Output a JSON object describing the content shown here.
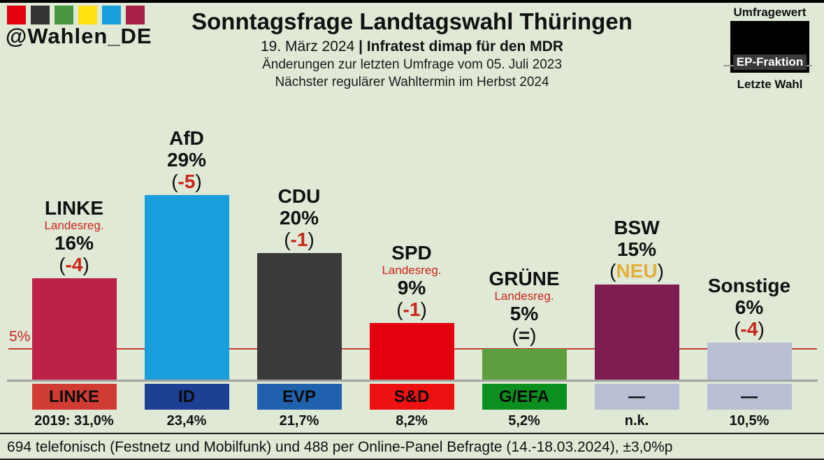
{
  "header": {
    "account": "@Wahlen_DE",
    "logo_colors": [
      "#e3000f",
      "#333333",
      "#4a9641",
      "#ffe10e",
      "#1a9fdd",
      "#a72046"
    ],
    "title": "Sonntagsfrage Landtagswahl Thüringen",
    "date_label": "19. März 2024 ",
    "source_label": "| Infratest dimap für den MDR",
    "subtitle2": "Änderungen zur letzten Umfrage vom 05. Juli 2023",
    "subtitle3": "Nächster regulärer Wahltermin im Herbst 2024"
  },
  "legend": {
    "top_label": "Umfragewert",
    "middle_label": "EP-Fraktion",
    "bottom_label": "Letzte Wahl"
  },
  "colors": {
    "background": "#dfe9d6",
    "accent_red": "#c9251c",
    "threshold_red": "#c93c32",
    "neutral_black": "#1a1a1a",
    "new_gold": "#e2ae3c",
    "baseline_gray": "#a3a3a3"
  },
  "chart_data": {
    "type": "bar",
    "title": "Sonntagsfrage Landtagswahl Thüringen",
    "unit": "%",
    "ylim": [
      0,
      31
    ],
    "grid": false,
    "threshold": {
      "value": 5,
      "label": "5%"
    },
    "categories": [
      "LINKE",
      "AfD",
      "CDU",
      "SPD",
      "GRÜNE",
      "BSW",
      "Sonstige"
    ],
    "values": [
      16,
      29,
      20,
      9,
      5,
      15,
      6
    ],
    "parties": [
      {
        "name": "LINKE",
        "note": "Landesreg.",
        "value": 16,
        "value_label": "16%",
        "change": "-4",
        "change_type": "loss",
        "ep_group": "LINKE",
        "last_election": "2019: 31,0%",
        "bar_color": "#bd2148",
        "ep_color": "#d03c33"
      },
      {
        "name": "AfD",
        "note": "",
        "value": 29,
        "value_label": "29%",
        "change": "-5",
        "change_type": "loss",
        "ep_group": "ID",
        "last_election": "23,4%",
        "bar_color": "#189edb",
        "ep_color": "#1d3f94"
      },
      {
        "name": "CDU",
        "note": "",
        "value": 20,
        "value_label": "20%",
        "change": "-1",
        "change_type": "loss",
        "ep_group": "EVP",
        "last_election": "21,7%",
        "bar_color": "#3a3a3a",
        "ep_color": "#2061ae"
      },
      {
        "name": "SPD",
        "note": "Landesreg.",
        "value": 9,
        "value_label": "9%",
        "change": "-1",
        "change_type": "loss",
        "ep_group": "S&D",
        "last_election": "8,2%",
        "bar_color": "#e3000f",
        "ep_color": "#ee1111"
      },
      {
        "name": "GRÜNE",
        "note": "Landesreg.",
        "value": 5,
        "value_label": "5%",
        "change": "=",
        "change_type": "equal",
        "ep_group": "G/EFA",
        "last_election": "5,2%",
        "bar_color": "#5f9e3e",
        "ep_color": "#0b9020"
      },
      {
        "name": "BSW",
        "note": "",
        "value": 15,
        "value_label": "15%",
        "change": "NEU",
        "change_type": "new",
        "ep_group": "—",
        "last_election": "n.k.",
        "bar_color": "#7d1d52",
        "ep_color": "#b8bed4"
      },
      {
        "name": "Sonstige",
        "note": "",
        "value": 6,
        "value_label": "6%",
        "change": "-4",
        "change_type": "loss",
        "ep_group": "—",
        "last_election": "10,5%",
        "bar_color": "#b8bed4",
        "ep_color": "#b8bed4"
      }
    ]
  },
  "footer": {
    "text": "694 telefonisch (Festnetz und Mobilfunk) und 488 per Online-Panel Befragte (14.-18.03.2024), ±3,0%p"
  }
}
